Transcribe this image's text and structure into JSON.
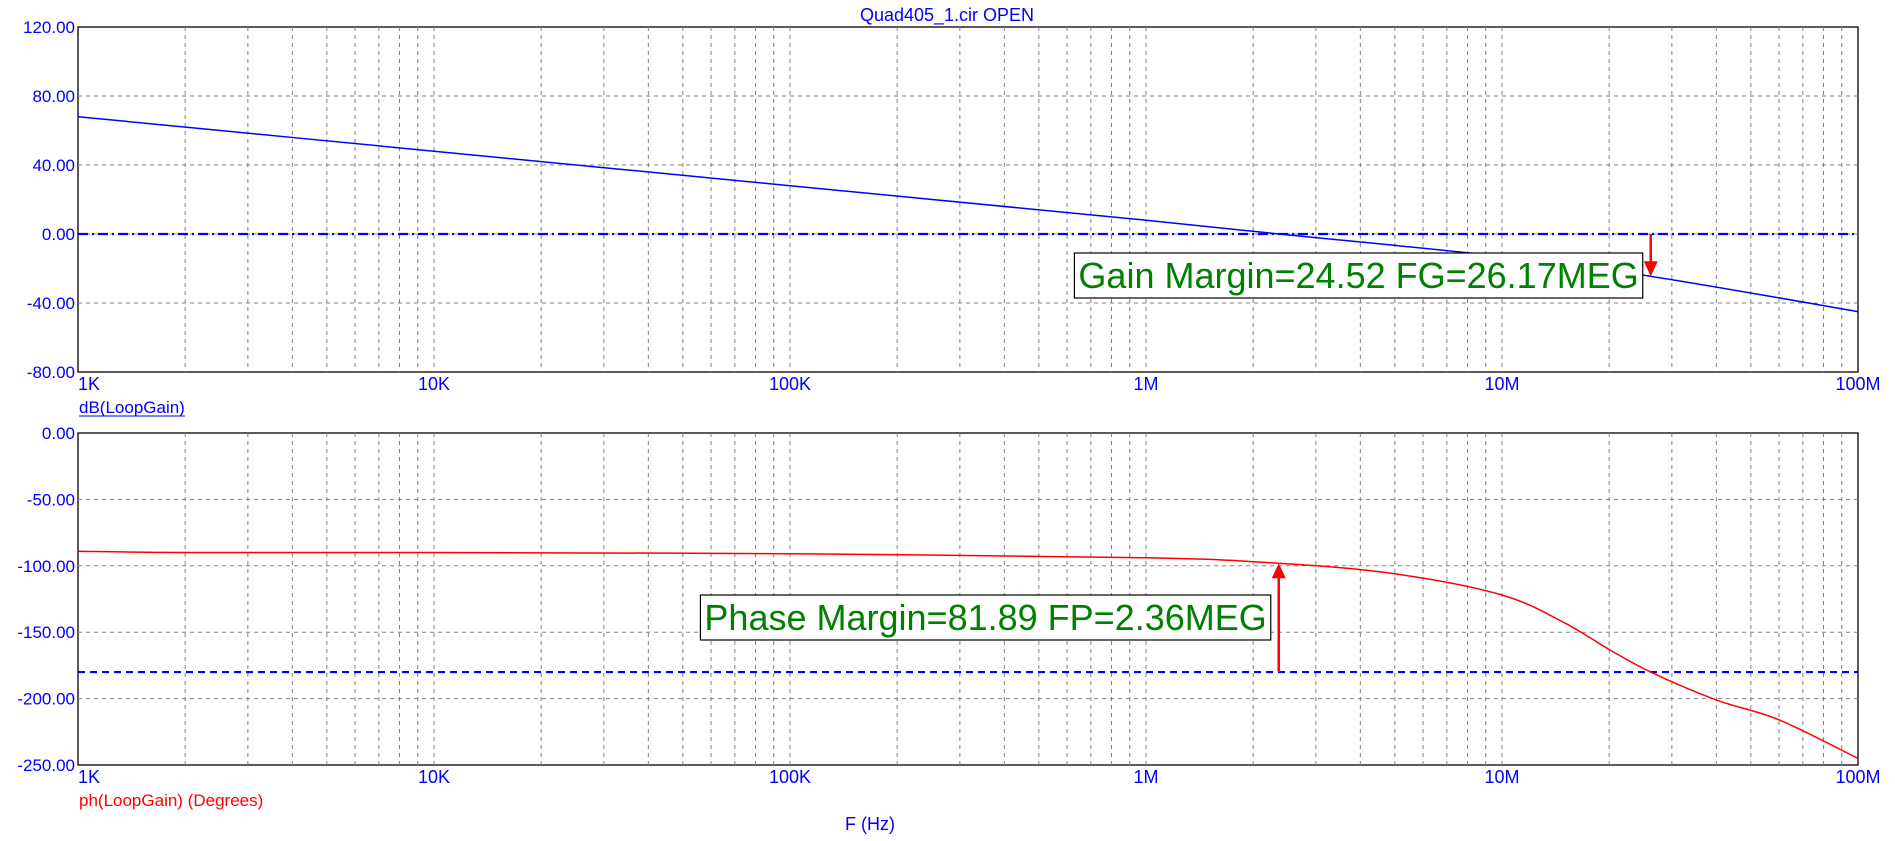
{
  "title": "Quad405_1.cir OPEN",
  "xlabel": "F (Hz)",
  "x_ticks": [
    "1K",
    "10K",
    "100K",
    "1M",
    "10M",
    "100M"
  ],
  "colors": {
    "gain": "#0000ff",
    "phase": "#ff0000",
    "annotation_text": "#008000",
    "axis_text": "#0000ff",
    "grid": "#808080"
  },
  "chart_data": [
    {
      "type": "line",
      "trace_label": "dB(LoopGain)",
      "x_scale": "log",
      "xlim": [
        1000,
        100000000
      ],
      "ylim": [
        -80,
        120
      ],
      "y_ticks": [
        "120.00",
        "80.00",
        "40.00",
        "0.00",
        "-40.00",
        "-80.00"
      ],
      "grid": true,
      "series": [
        {
          "name": "dB(LoopGain)",
          "color": "#0000ff",
          "x": [
            1000,
            10000,
            100000,
            1000000,
            2360000,
            10000000,
            26170000,
            100000000
          ],
          "y": [
            68,
            48,
            28,
            8,
            0,
            -13,
            -24.52,
            -45
          ]
        }
      ],
      "reference_line": {
        "y": 0,
        "style": "dash-dot"
      },
      "annotation": {
        "text": "Gain Margin=24.52 FG=26.17MEG",
        "x": 26170000,
        "y": -24.52,
        "arrow_from_y": 0
      }
    },
    {
      "type": "line",
      "trace_label": "ph(LoopGain) (Degrees)",
      "x_scale": "log",
      "xlim": [
        1000,
        100000000
      ],
      "ylim": [
        -250,
        0
      ],
      "y_ticks": [
        "0.00",
        "-50.00",
        "-100.00",
        "-150.00",
        "-200.00",
        "-250.00"
      ],
      "grid": true,
      "series": [
        {
          "name": "ph(LoopGain) (Degrees)",
          "color": "#ff0000",
          "x": [
            1000,
            2000,
            10000,
            100000,
            1000000,
            2360000,
            5000000,
            10000000,
            15000000,
            20000000,
            26170000,
            40000000,
            60000000,
            100000000
          ],
          "y": [
            -89,
            -90,
            -90,
            -91,
            -94,
            -98.11,
            -106,
            -122,
            -143,
            -163,
            -180,
            -201,
            -216,
            -245
          ]
        }
      ],
      "reference_line": {
        "y": -180,
        "style": "dashed"
      },
      "annotation": {
        "text": "Phase Margin=81.89 FP=2.36MEG",
        "x": 2360000,
        "y": -98.11,
        "arrow_from_y": -180
      }
    }
  ]
}
